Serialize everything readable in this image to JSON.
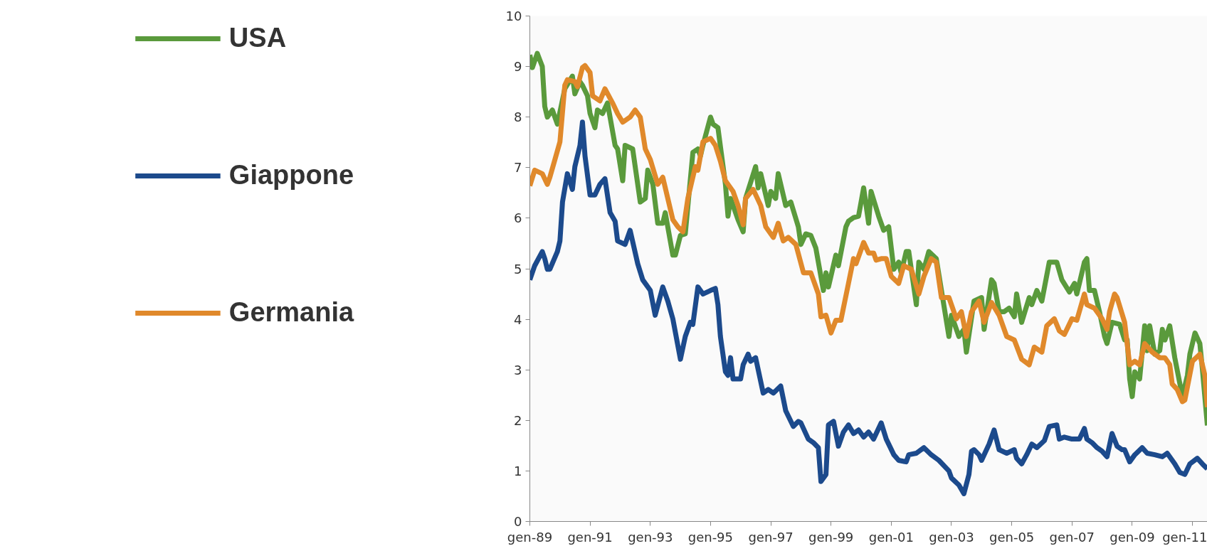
{
  "chart_data": {
    "type": "line",
    "legend": "left",
    "grid": false,
    "marker": "none",
    "line_style": "solid",
    "xlim": [
      "1989-01",
      "2011-07"
    ],
    "ylim": [
      0,
      10
    ],
    "xticks": [
      {
        "value": "1989-01",
        "label": "gen-89"
      },
      {
        "value": "1991-01",
        "label": "gen-91"
      },
      {
        "value": "1993-01",
        "label": "gen-93"
      },
      {
        "value": "1995-01",
        "label": "gen-95"
      },
      {
        "value": "1997-01",
        "label": "gen-97"
      },
      {
        "value": "1999-01",
        "label": "gen-99"
      },
      {
        "value": "2001-01",
        "label": "gen-01"
      },
      {
        "value": "2003-01",
        "label": "gen-03"
      },
      {
        "value": "2005-01",
        "label": "gen-05"
      },
      {
        "value": "2007-01",
        "label": "gen-07"
      },
      {
        "value": "2009-01",
        "label": "gen-09"
      },
      {
        "value": "2011-01",
        "label": "gen-11"
      }
    ],
    "yticks": [
      0,
      1,
      2,
      3,
      4,
      5,
      6,
      7,
      8,
      9,
      10
    ],
    "series": [
      {
        "name": "USA",
        "color": "#5a9a3c",
        "x": [
          "1989-01",
          "1989-02",
          "1989-04",
          "1989-06",
          "1989-07",
          "1989-08",
          "1989-10",
          "1989-12",
          "1990-03",
          "1990-06",
          "1990-07",
          "1990-09",
          "1990-10",
          "1990-12",
          "1991-01",
          "1991-03",
          "1991-04",
          "1991-06",
          "1991-08",
          "1991-11",
          "1991-12",
          "1992-02",
          "1992-03",
          "1992-06",
          "1992-09",
          "1992-11",
          "1992-12",
          "1993-02",
          "1993-04",
          "1993-06",
          "1993-07",
          "1993-10",
          "1993-11",
          "1994-01",
          "1994-03",
          "1994-06",
          "1994-08",
          "1994-09",
          "1994-10",
          "1995-01",
          "1995-02",
          "1995-04",
          "1995-07",
          "1995-08",
          "1995-09",
          "1995-12",
          "1996-02",
          "1996-03",
          "1996-07",
          "1996-08",
          "1996-09",
          "1996-12",
          "1997-01",
          "1997-03",
          "1997-04",
          "1997-07",
          "1997-09",
          "1997-12",
          "1998-01",
          "1998-03",
          "1998-05",
          "1998-07",
          "1998-10",
          "1998-11",
          "1998-12",
          "1999-03",
          "1999-04",
          "1999-07",
          "1999-08",
          "1999-10",
          "1999-12",
          "2000-02",
          "2000-04",
          "2000-05",
          "2000-08",
          "2000-10",
          "2000-12",
          "2001-02",
          "2001-04",
          "2001-05",
          "2001-07",
          "2001-08",
          "2001-11",
          "2001-12",
          "2002-02",
          "2002-04",
          "2002-07",
          "2002-12",
          "2003-01",
          "2003-04",
          "2003-06",
          "2003-07",
          "2003-10",
          "2004-01",
          "2004-02",
          "2004-05",
          "2004-06",
          "2004-08",
          "2004-10",
          "2004-12",
          "2005-02",
          "2005-03",
          "2005-05",
          "2005-08",
          "2005-09",
          "2005-11",
          "2006-01",
          "2006-04",
          "2006-07",
          "2006-09",
          "2006-12",
          "2007-02",
          "2007-03",
          "2007-04",
          "2007-06",
          "2007-07",
          "2007-08",
          "2007-10",
          "2007-12",
          "2008-02",
          "2008-03",
          "2008-05",
          "2008-08",
          "2008-10",
          "2008-11",
          "2008-12",
          "2009-01",
          "2009-02",
          "2009-04",
          "2009-06",
          "2009-07",
          "2009-08",
          "2009-10",
          "2009-12",
          "2010-01",
          "2010-02",
          "2010-04",
          "2010-06",
          "2010-09",
          "2010-11",
          "2010-12",
          "2011-02",
          "2011-04",
          "2011-05",
          "2011-07"
        ],
        "values": [
          9.23,
          8.98,
          9.26,
          9.0,
          8.21,
          8.0,
          8.14,
          7.86,
          8.56,
          8.81,
          8.46,
          8.7,
          8.63,
          8.42,
          8.07,
          7.79,
          8.14,
          8.07,
          8.28,
          7.44,
          7.37,
          6.74,
          7.44,
          7.37,
          6.32,
          6.39,
          6.95,
          6.67,
          5.9,
          5.9,
          6.11,
          5.27,
          5.27,
          5.66,
          5.69,
          7.3,
          7.37,
          7.23,
          7.44,
          8.0,
          7.86,
          7.79,
          6.67,
          6.04,
          6.39,
          5.97,
          5.73,
          6.39,
          7.02,
          6.6,
          6.88,
          6.25,
          6.53,
          6.39,
          6.88,
          6.25,
          6.32,
          5.83,
          5.48,
          5.69,
          5.66,
          5.41,
          4.57,
          4.92,
          4.64,
          5.27,
          5.06,
          5.83,
          5.94,
          6.01,
          6.04,
          6.6,
          5.9,
          6.53,
          6.04,
          5.76,
          5.83,
          4.99,
          5.13,
          4.92,
          5.34,
          5.34,
          4.29,
          5.13,
          4.99,
          5.34,
          5.2,
          3.66,
          4.08,
          3.66,
          3.8,
          3.35,
          4.36,
          4.43,
          3.8,
          4.78,
          4.71,
          4.15,
          4.15,
          4.22,
          4.05,
          4.5,
          3.94,
          4.43,
          4.29,
          4.57,
          4.36,
          5.13,
          5.13,
          4.78,
          4.54,
          4.71,
          4.5,
          4.71,
          5.13,
          5.2,
          4.57,
          4.57,
          4.15,
          3.66,
          3.52,
          3.94,
          3.9,
          3.59,
          3.59,
          2.82,
          2.47,
          2.96,
          2.82,
          3.87,
          3.38,
          3.87,
          3.31,
          3.38,
          3.8,
          3.59,
          3.87,
          3.24,
          2.47,
          2.89,
          3.31,
          3.73,
          3.52,
          3.03,
          1.9
        ]
      },
      {
        "name": "Giappone",
        "color": "#1c4a8c",
        "x": [
          "1989-01",
          "1989-03",
          "1989-06",
          "1989-07",
          "1989-08",
          "1989-09",
          "1989-12",
          "1990-01",
          "1990-02",
          "1990-04",
          "1990-06",
          "1990-07",
          "1990-09",
          "1990-10",
          "1990-11",
          "1991-01",
          "1991-03",
          "1991-05",
          "1991-07",
          "1991-09",
          "1991-11",
          "1991-12",
          "1992-03",
          "1992-05",
          "1992-08",
          "1992-10",
          "1993-01",
          "1993-03",
          "1993-06",
          "1993-08",
          "1993-10",
          "1994-01",
          "1994-03",
          "1994-05",
          "1994-06",
          "1994-08",
          "1994-10",
          "1995-01",
          "1995-03",
          "1995-04",
          "1995-05",
          "1995-07",
          "1995-08",
          "1995-09",
          "1995-10",
          "1996-01",
          "1996-02",
          "1996-04",
          "1996-05",
          "1996-07",
          "1996-10",
          "1996-12",
          "1997-02",
          "1997-05",
          "1997-07",
          "1997-10",
          "1997-12",
          "1998-01",
          "1998-04",
          "1998-06",
          "1998-08",
          "1998-09",
          "1998-11",
          "1998-12",
          "1999-02",
          "1999-04",
          "1999-06",
          "1999-08",
          "1999-10",
          "1999-12",
          "2000-02",
          "2000-04",
          "2000-06",
          "2000-09",
          "2000-11",
          "2001-02",
          "2001-04",
          "2001-07",
          "2001-08",
          "2001-11",
          "2002-02",
          "2002-05",
          "2002-08",
          "2002-12",
          "2003-01",
          "2003-04",
          "2003-06",
          "2003-08",
          "2003-09",
          "2003-10",
          "2003-12",
          "2004-01",
          "2004-04",
          "2004-06",
          "2004-08",
          "2004-11",
          "2005-02",
          "2005-03",
          "2005-05",
          "2005-07",
          "2005-09",
          "2005-11",
          "2006-02",
          "2006-04",
          "2006-07",
          "2006-08",
          "2006-10",
          "2007-01",
          "2007-04",
          "2007-06",
          "2007-07",
          "2007-09",
          "2007-11",
          "2008-01",
          "2008-03",
          "2008-05",
          "2008-07",
          "2008-09",
          "2008-10",
          "2008-12",
          "2009-02",
          "2009-05",
          "2009-07",
          "2009-10",
          "2010-01",
          "2010-03",
          "2010-06",
          "2010-08",
          "2010-10",
          "2010-12",
          "2011-03",
          "2011-05",
          "2011-07"
        ],
        "values": [
          4.78,
          5.06,
          5.34,
          5.2,
          4.99,
          4.99,
          5.34,
          5.55,
          6.32,
          6.88,
          6.57,
          7.02,
          7.44,
          7.9,
          7.23,
          6.46,
          6.46,
          6.67,
          6.78,
          6.11,
          5.94,
          5.55,
          5.48,
          5.76,
          5.1,
          4.78,
          4.57,
          4.08,
          4.64,
          4.36,
          4.01,
          3.21,
          3.66,
          3.94,
          3.9,
          4.64,
          4.5,
          4.57,
          4.61,
          4.29,
          3.66,
          2.96,
          2.89,
          3.24,
          2.82,
          2.82,
          3.1,
          3.31,
          3.17,
          3.24,
          2.54,
          2.61,
          2.54,
          2.68,
          2.19,
          1.88,
          1.98,
          1.95,
          1.63,
          1.56,
          1.46,
          0.79,
          0.93,
          1.91,
          1.98,
          1.49,
          1.77,
          1.91,
          1.74,
          1.81,
          1.67,
          1.77,
          1.63,
          1.95,
          1.63,
          1.32,
          1.21,
          1.18,
          1.32,
          1.35,
          1.46,
          1.32,
          1.21,
          1.0,
          0.86,
          0.72,
          0.55,
          0.93,
          1.39,
          1.42,
          1.32,
          1.21,
          1.53,
          1.81,
          1.42,
          1.35,
          1.42,
          1.25,
          1.14,
          1.32,
          1.53,
          1.46,
          1.6,
          1.88,
          1.91,
          1.63,
          1.67,
          1.63,
          1.63,
          1.84,
          1.63,
          1.56,
          1.46,
          1.39,
          1.28,
          1.74,
          1.49,
          1.42,
          1.42,
          1.18,
          1.32,
          1.46,
          1.35,
          1.32,
          1.28,
          1.35,
          1.14,
          0.97,
          0.93,
          1.14,
          1.25,
          1.14,
          1.04
        ]
      },
      {
        "name": "Germania",
        "color": "#e0892b",
        "x": [
          "1989-01",
          "1989-03",
          "1989-06",
          "1989-08",
          "1989-09",
          "1989-11",
          "1990-01",
          "1990-03",
          "1990-04",
          "1990-07",
          "1990-08",
          "1990-10",
          "1990-11",
          "1991-01",
          "1991-02",
          "1991-05",
          "1991-07",
          "1991-10",
          "1991-12",
          "1992-02",
          "1992-05",
          "1992-07",
          "1992-09",
          "1992-11",
          "1993-01",
          "1993-04",
          "1993-06",
          "1993-08",
          "1993-10",
          "1993-12",
          "1994-02",
          "1994-04",
          "1994-07",
          "1994-08",
          "1994-10",
          "1995-01",
          "1995-03",
          "1995-05",
          "1995-07",
          "1995-10",
          "1995-12",
          "1996-02",
          "1996-03",
          "1996-06",
          "1996-09",
          "1996-11",
          "1997-02",
          "1997-04",
          "1997-06",
          "1997-08",
          "1997-11",
          "1998-02",
          "1998-05",
          "1998-08",
          "1998-09",
          "1998-11",
          "1999-01",
          "1999-03",
          "1999-05",
          "1999-08",
          "1999-10",
          "1999-11",
          "2000-02",
          "2000-04",
          "2000-06",
          "2000-07",
          "2000-09",
          "2000-11",
          "2001-01",
          "2001-04",
          "2001-06",
          "2001-09",
          "2001-12",
          "2002-02",
          "2002-05",
          "2002-07",
          "2002-09",
          "2002-12",
          "2003-03",
          "2003-05",
          "2003-07",
          "2003-09",
          "2003-12",
          "2004-02",
          "2004-05",
          "2004-08",
          "2004-11",
          "2005-02",
          "2005-05",
          "2005-08",
          "2005-10",
          "2006-01",
          "2006-03",
          "2006-06",
          "2006-08",
          "2006-10",
          "2007-01",
          "2007-03",
          "2007-06",
          "2007-07",
          "2007-10",
          "2008-01",
          "2008-03",
          "2008-04",
          "2008-06",
          "2008-07",
          "2008-10",
          "2008-12",
          "2009-02",
          "2009-04",
          "2009-06",
          "2009-09",
          "2009-12",
          "2010-02",
          "2010-04",
          "2010-05",
          "2010-07",
          "2010-09",
          "2010-10",
          "2011-01",
          "2011-04",
          "2011-06",
          "2011-07"
        ],
        "values": [
          6.64,
          6.95,
          6.88,
          6.67,
          6.81,
          7.16,
          7.51,
          8.63,
          8.74,
          8.7,
          8.6,
          8.98,
          9.02,
          8.88,
          8.42,
          8.32,
          8.56,
          8.28,
          8.07,
          7.9,
          8.0,
          8.14,
          8.0,
          7.37,
          7.16,
          6.67,
          6.81,
          6.39,
          5.97,
          5.83,
          5.73,
          6.39,
          7.02,
          6.95,
          7.51,
          7.58,
          7.44,
          7.13,
          6.74,
          6.53,
          6.25,
          5.87,
          6.39,
          6.57,
          6.25,
          5.83,
          5.62,
          5.9,
          5.55,
          5.62,
          5.48,
          4.92,
          4.92,
          4.5,
          4.05,
          4.08,
          3.73,
          3.98,
          3.98,
          4.71,
          5.2,
          5.1,
          5.52,
          5.31,
          5.31,
          5.17,
          5.2,
          5.2,
          4.85,
          4.71,
          5.06,
          4.99,
          4.5,
          4.85,
          5.2,
          5.13,
          4.43,
          4.43,
          4.01,
          4.15,
          3.66,
          4.15,
          4.36,
          3.94,
          4.33,
          4.08,
          3.66,
          3.59,
          3.21,
          3.1,
          3.45,
          3.35,
          3.87,
          4.01,
          3.77,
          3.7,
          4.01,
          3.98,
          4.5,
          4.29,
          4.22,
          4.01,
          3.8,
          4.15,
          4.5,
          4.43,
          3.94,
          3.1,
          3.17,
          3.1,
          3.52,
          3.35,
          3.24,
          3.24,
          3.1,
          2.72,
          2.61,
          2.37,
          2.4,
          3.17,
          3.31,
          2.89,
          2.26
        ]
      }
    ]
  }
}
